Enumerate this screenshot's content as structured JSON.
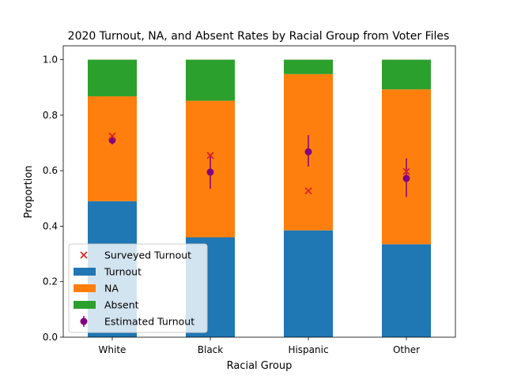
{
  "chart_data": {
    "type": "bar",
    "stacked": true,
    "title": "2020 Turnout, NA, and Absent Rates by Racial Group from Voter Files",
    "xlabel": "Racial Group",
    "ylabel": "Proportion",
    "ylim": [
      0,
      1.05
    ],
    "yticks": [
      "0.0",
      "0.2",
      "0.4",
      "0.6",
      "0.8",
      "1.0"
    ],
    "categories": [
      "White",
      "Black",
      "Hispanic",
      "Other"
    ],
    "series": [
      {
        "name": "Turnout",
        "color": "#1f77b4",
        "values": [
          0.49,
          0.36,
          0.385,
          0.335
        ]
      },
      {
        "name": "NA",
        "color": "#ff7f0e",
        "values": [
          0.378,
          0.492,
          0.563,
          0.558
        ]
      },
      {
        "name": "Absent",
        "color": "#2ca02c",
        "values": [
          0.132,
          0.148,
          0.052,
          0.107
        ]
      }
    ],
    "estimated_turnout": {
      "name": "Estimated Turnout",
      "color": "#800080",
      "values": [
        0.71,
        0.595,
        0.668,
        0.572
      ],
      "error_low": [
        0.695,
        0.535,
        0.615,
        0.505
      ],
      "error_high": [
        0.722,
        0.66,
        0.728,
        0.645
      ]
    },
    "surveyed_turnout": {
      "name": "Surveyed Turnout",
      "color": "#d62728",
      "values": [
        0.725,
        0.655,
        0.527,
        0.597
      ]
    },
    "legend": {
      "position": "lower-left",
      "entries": [
        "Surveyed Turnout",
        "Turnout",
        "NA",
        "Absent",
        "Estimated Turnout"
      ]
    }
  }
}
